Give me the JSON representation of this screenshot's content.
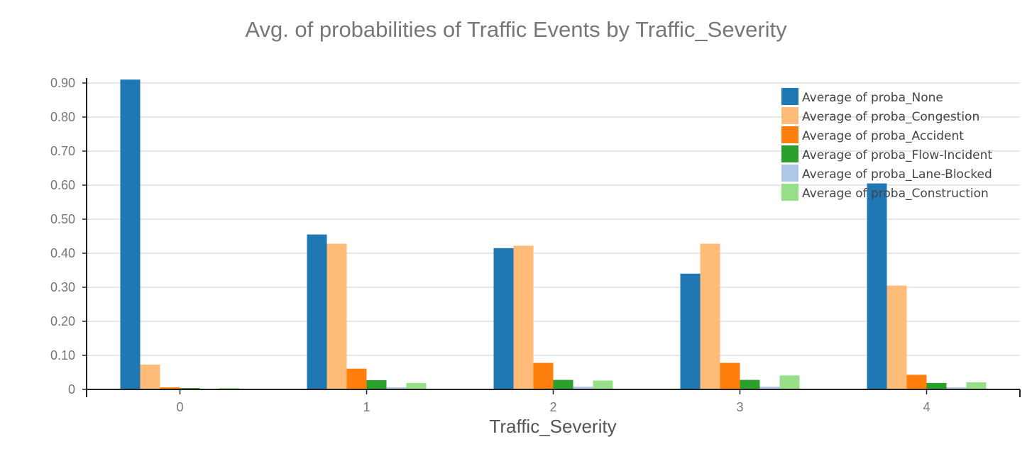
{
  "chart_data": {
    "type": "bar",
    "title": "Avg. of probabilities of Traffic Events by Traffic_Severity",
    "xlabel": "Traffic_Severity",
    "ylabel": "",
    "categories": [
      "0",
      "1",
      "2",
      "3",
      "4"
    ],
    "ylim": [
      0,
      0.92
    ],
    "yticks": [
      0,
      0.1,
      0.2,
      0.3,
      0.4,
      0.5,
      0.6,
      0.7,
      0.8,
      0.9
    ],
    "ytick_labels": [
      "0",
      "0.10",
      "0.20",
      "0.30",
      "0.40",
      "0.50",
      "0.60",
      "0.70",
      "0.80",
      "0.90"
    ],
    "grid": true,
    "legend_position": "top-right",
    "series": [
      {
        "name": "Average of proba_None",
        "color": "#1f77b4",
        "values": [
          0.91,
          0.455,
          0.415,
          0.34,
          0.605
        ]
      },
      {
        "name": "Average of proba_Congestion",
        "color": "#ffbb78",
        "values": [
          0.073,
          0.428,
          0.422,
          0.428,
          0.305
        ]
      },
      {
        "name": "Average of proba_Accident",
        "color": "#ff7f0e",
        "values": [
          0.006,
          0.061,
          0.078,
          0.078,
          0.043
        ]
      },
      {
        "name": "Average of proba_Flow-Incident",
        "color": "#2ca02c",
        "values": [
          0.004,
          0.027,
          0.028,
          0.028,
          0.019
        ]
      },
      {
        "name": "Average of proba_Lane-Blocked",
        "color": "#aec7e8",
        "values": [
          0.002,
          0.006,
          0.008,
          0.008,
          0.006
        ]
      },
      {
        "name": "Average of proba_Construction",
        "color": "#98df8a",
        "values": [
          0.004,
          0.019,
          0.026,
          0.041,
          0.021
        ]
      }
    ]
  }
}
